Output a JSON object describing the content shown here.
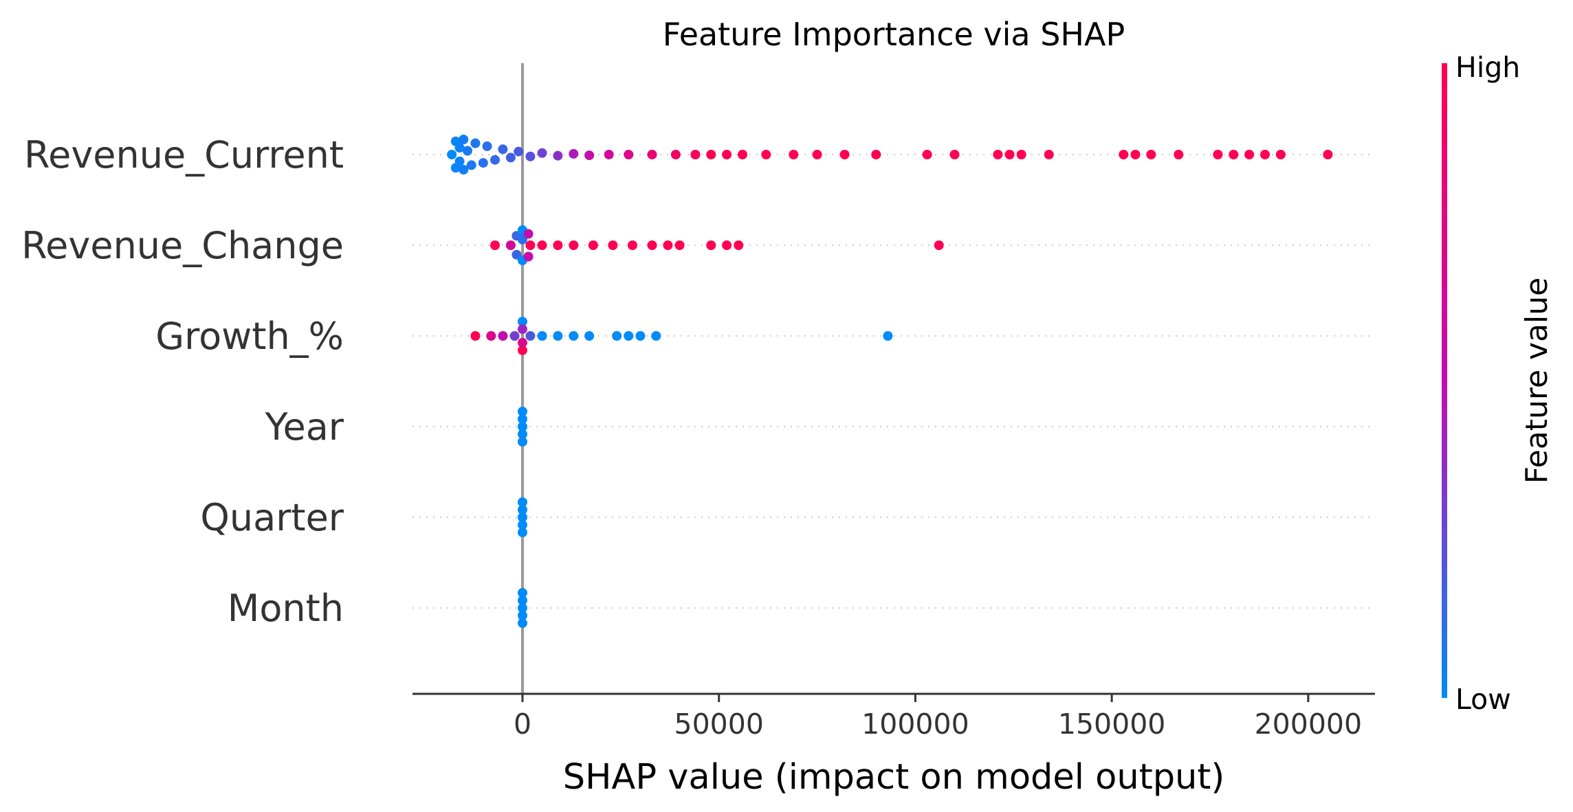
{
  "chart_data": {
    "type": "scatter",
    "title": "Feature Importance via SHAP",
    "xlabel": "SHAP value (impact on model output)",
    "xlim": [
      -28000,
      217000
    ],
    "xticks": [
      0,
      50000,
      100000,
      150000,
      200000
    ],
    "xtick_labels": [
      "0",
      "50000",
      "100000",
      "150000",
      "200000"
    ],
    "colorbar": {
      "label": "Feature value",
      "high_label": "High",
      "low_label": "Low",
      "low_color": "#008bfb",
      "mid_color": "#c30cb0",
      "high_color": "#ff0052"
    },
    "zero_line": 0,
    "grid": false,
    "features": [
      {
        "name": "Revenue_Current",
        "points": [
          {
            "x": -18000,
            "y": 0.0,
            "v": 0.0
          },
          {
            "x": -17000,
            "y": 0.35,
            "v": 0.02
          },
          {
            "x": -17000,
            "y": -0.35,
            "v": 0.02
          },
          {
            "x": -16000,
            "y": 0.18,
            "v": 0.03
          },
          {
            "x": -16000,
            "y": -0.18,
            "v": 0.03
          },
          {
            "x": -15000,
            "y": 0.4,
            "v": 0.05
          },
          {
            "x": -15000,
            "y": -0.4,
            "v": 0.05
          },
          {
            "x": -14000,
            "y": 0.1,
            "v": 0.06
          },
          {
            "x": -13000,
            "y": -0.28,
            "v": 0.07
          },
          {
            "x": -12000,
            "y": 0.3,
            "v": 0.08
          },
          {
            "x": -10000,
            "y": -0.22,
            "v": 0.1
          },
          {
            "x": -9000,
            "y": 0.22,
            "v": 0.11
          },
          {
            "x": -7000,
            "y": -0.14,
            "v": 0.13
          },
          {
            "x": -5000,
            "y": 0.14,
            "v": 0.15
          },
          {
            "x": -3000,
            "y": -0.08,
            "v": 0.17
          },
          {
            "x": -1000,
            "y": 0.08,
            "v": 0.19
          },
          {
            "x": 2000,
            "y": -0.05,
            "v": 0.22
          },
          {
            "x": 5000,
            "y": 0.04,
            "v": 0.28
          },
          {
            "x": 9000,
            "y": -0.03,
            "v": 0.36
          },
          {
            "x": 13000,
            "y": 0.02,
            "v": 0.44
          },
          {
            "x": 17000,
            "y": -0.02,
            "v": 0.52
          },
          {
            "x": 22000,
            "y": 0.0,
            "v": 0.62
          },
          {
            "x": 27000,
            "y": 0.0,
            "v": 0.72
          },
          {
            "x": 33000,
            "y": 0.0,
            "v": 0.82
          },
          {
            "x": 39000,
            "y": 0.0,
            "v": 0.9
          },
          {
            "x": 44000,
            "y": 0.0,
            "v": 0.96
          },
          {
            "x": 48000,
            "y": 0.0,
            "v": 1.0
          },
          {
            "x": 52000,
            "y": 0.0,
            "v": 1.0
          },
          {
            "x": 56000,
            "y": 0.0,
            "v": 1.0
          },
          {
            "x": 62000,
            "y": 0.0,
            "v": 1.0
          },
          {
            "x": 69000,
            "y": 0.0,
            "v": 1.0
          },
          {
            "x": 75000,
            "y": 0.0,
            "v": 1.0
          },
          {
            "x": 82000,
            "y": 0.0,
            "v": 1.0
          },
          {
            "x": 90000,
            "y": 0.0,
            "v": 1.0
          },
          {
            "x": 103000,
            "y": 0.0,
            "v": 1.0
          },
          {
            "x": 110000,
            "y": 0.0,
            "v": 1.0
          },
          {
            "x": 121000,
            "y": 0.0,
            "v": 1.0
          },
          {
            "x": 124000,
            "y": 0.0,
            "v": 1.0
          },
          {
            "x": 127000,
            "y": 0.0,
            "v": 1.0
          },
          {
            "x": 134000,
            "y": 0.0,
            "v": 1.0
          },
          {
            "x": 153000,
            "y": 0.0,
            "v": 1.0
          },
          {
            "x": 156000,
            "y": 0.0,
            "v": 1.0
          },
          {
            "x": 160000,
            "y": 0.0,
            "v": 1.0
          },
          {
            "x": 167000,
            "y": 0.0,
            "v": 1.0
          },
          {
            "x": 177000,
            "y": 0.0,
            "v": 1.0
          },
          {
            "x": 181000,
            "y": 0.0,
            "v": 1.0
          },
          {
            "x": 185000,
            "y": 0.0,
            "v": 1.0
          },
          {
            "x": 189000,
            "y": 0.0,
            "v": 1.0
          },
          {
            "x": 193000,
            "y": 0.0,
            "v": 1.0
          },
          {
            "x": 205000,
            "y": 0.0,
            "v": 1.0
          }
        ]
      },
      {
        "name": "Revenue_Change",
        "points": [
          {
            "x": -7000,
            "y": 0.0,
            "v": 1.0
          },
          {
            "x": -3000,
            "y": 0.0,
            "v": 0.6
          },
          {
            "x": -1500,
            "y": 0.25,
            "v": 0.15
          },
          {
            "x": -1500,
            "y": -0.25,
            "v": 0.15
          },
          {
            "x": 0,
            "y": 0.4,
            "v": 0.0
          },
          {
            "x": 0,
            "y": -0.4,
            "v": 0.0
          },
          {
            "x": 0,
            "y": 0.15,
            "v": 0.1
          },
          {
            "x": 1500,
            "y": 0.3,
            "v": 0.5
          },
          {
            "x": 1500,
            "y": -0.3,
            "v": 0.5
          },
          {
            "x": 2000,
            "y": 0.0,
            "v": 1.0
          },
          {
            "x": 5000,
            "y": 0.0,
            "v": 1.0
          },
          {
            "x": 9000,
            "y": 0.0,
            "v": 1.0
          },
          {
            "x": 13000,
            "y": 0.0,
            "v": 1.0
          },
          {
            "x": 18000,
            "y": 0.0,
            "v": 1.0
          },
          {
            "x": 23000,
            "y": 0.0,
            "v": 1.0
          },
          {
            "x": 28000,
            "y": 0.0,
            "v": 1.0
          },
          {
            "x": 33000,
            "y": 0.0,
            "v": 1.0
          },
          {
            "x": 37000,
            "y": 0.0,
            "v": 1.0
          },
          {
            "x": 40000,
            "y": 0.0,
            "v": 1.0
          },
          {
            "x": 48000,
            "y": 0.0,
            "v": 1.0
          },
          {
            "x": 52000,
            "y": 0.0,
            "v": 1.0
          },
          {
            "x": 55000,
            "y": 0.0,
            "v": 1.0
          },
          {
            "x": 106000,
            "y": 0.0,
            "v": 1.0
          }
        ]
      },
      {
        "name": "Growth_%",
        "points": [
          {
            "x": -12000,
            "y": 0.0,
            "v": 1.0
          },
          {
            "x": -8000,
            "y": 0.0,
            "v": 0.7
          },
          {
            "x": -5000,
            "y": 0.0,
            "v": 0.5
          },
          {
            "x": -2000,
            "y": 0.0,
            "v": 0.3
          },
          {
            "x": 0,
            "y": 0.38,
            "v": 0.0
          },
          {
            "x": 0,
            "y": -0.38,
            "v": 1.0
          },
          {
            "x": 0,
            "y": 0.18,
            "v": 0.4
          },
          {
            "x": 0,
            "y": -0.18,
            "v": 0.7
          },
          {
            "x": 2000,
            "y": 0.0,
            "v": 0.2
          },
          {
            "x": 5000,
            "y": 0.0,
            "v": 0.0
          },
          {
            "x": 9000,
            "y": 0.0,
            "v": 0.0
          },
          {
            "x": 13000,
            "y": 0.0,
            "v": 0.0
          },
          {
            "x": 17000,
            "y": 0.0,
            "v": 0.0
          },
          {
            "x": 24000,
            "y": 0.0,
            "v": 0.0
          },
          {
            "x": 27000,
            "y": 0.0,
            "v": 0.0
          },
          {
            "x": 30000,
            "y": 0.0,
            "v": 0.0
          },
          {
            "x": 34000,
            "y": 0.0,
            "v": 0.0
          },
          {
            "x": 93000,
            "y": 0.0,
            "v": 0.0
          }
        ]
      },
      {
        "name": "Year",
        "points": [
          {
            "x": 0,
            "y": 0.4,
            "v": 0.0
          },
          {
            "x": 0,
            "y": 0.2,
            "v": 0.0
          },
          {
            "x": 0,
            "y": 0.0,
            "v": 0.0
          },
          {
            "x": 0,
            "y": -0.2,
            "v": 0.0
          },
          {
            "x": 0,
            "y": -0.4,
            "v": 0.0
          }
        ]
      },
      {
        "name": "Quarter",
        "points": [
          {
            "x": 0,
            "y": 0.4,
            "v": 0.0
          },
          {
            "x": 0,
            "y": 0.2,
            "v": 0.0
          },
          {
            "x": 0,
            "y": 0.0,
            "v": 0.0
          },
          {
            "x": 0,
            "y": -0.2,
            "v": 0.0
          },
          {
            "x": 0,
            "y": -0.4,
            "v": 0.0
          }
        ]
      },
      {
        "name": "Month",
        "points": [
          {
            "x": 0,
            "y": 0.4,
            "v": 0.0
          },
          {
            "x": 0,
            "y": 0.2,
            "v": 0.0
          },
          {
            "x": 0,
            "y": 0.0,
            "v": 0.0
          },
          {
            "x": 0,
            "y": -0.2,
            "v": 0.0
          },
          {
            "x": 0,
            "y": -0.4,
            "v": 0.0
          }
        ]
      }
    ]
  }
}
